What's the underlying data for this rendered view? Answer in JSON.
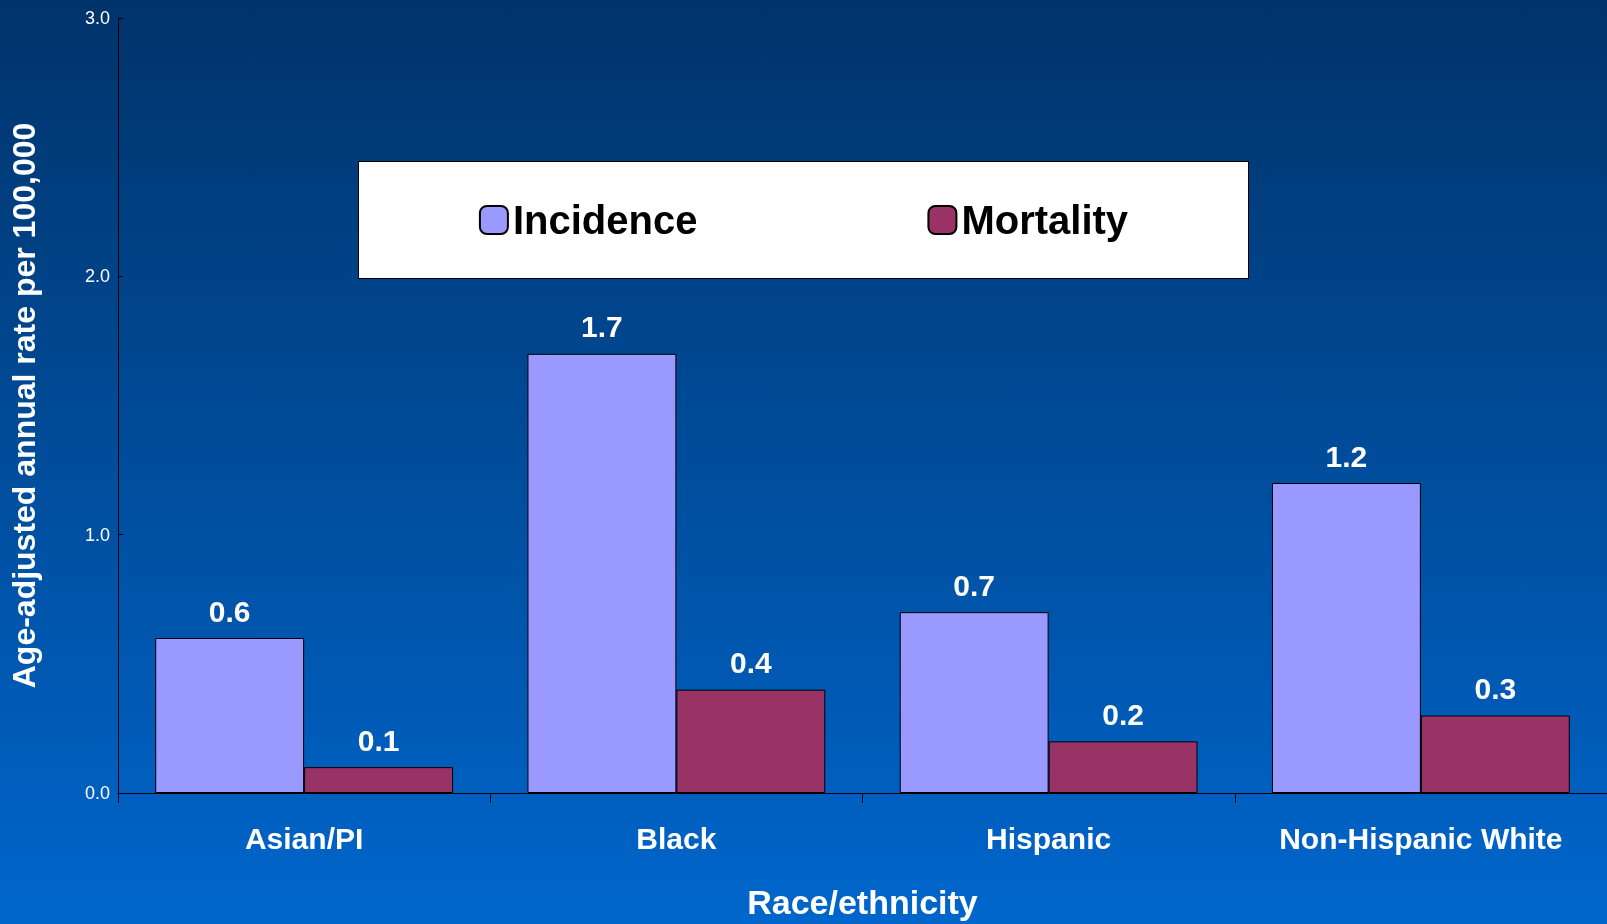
{
  "chart_data": {
    "type": "bar",
    "xlabel": "Race/ethnicity",
    "ylabel": "Age-adjusted annual rate per 100,000",
    "categories": [
      "Asian/PI",
      "Black",
      "Hispanic",
      "Non-Hispanic White"
    ],
    "series": [
      {
        "name": "Incidence",
        "color": "#9999ff",
        "values": [
          0.6,
          1.7,
          0.7,
          1.2
        ]
      },
      {
        "name": "Mortality",
        "color": "#993366",
        "values": [
          0.1,
          0.4,
          0.2,
          0.3
        ]
      }
    ],
    "ylim": [
      0,
      3
    ],
    "yticks": [
      {
        "value": 0,
        "label": "0.0"
      },
      {
        "value": 1,
        "label": "1.0"
      },
      {
        "value": 2,
        "label": "2.0"
      },
      {
        "value": 3,
        "label": "3.0"
      }
    ],
    "data_labels": true,
    "grid": false,
    "legend": "top"
  }
}
